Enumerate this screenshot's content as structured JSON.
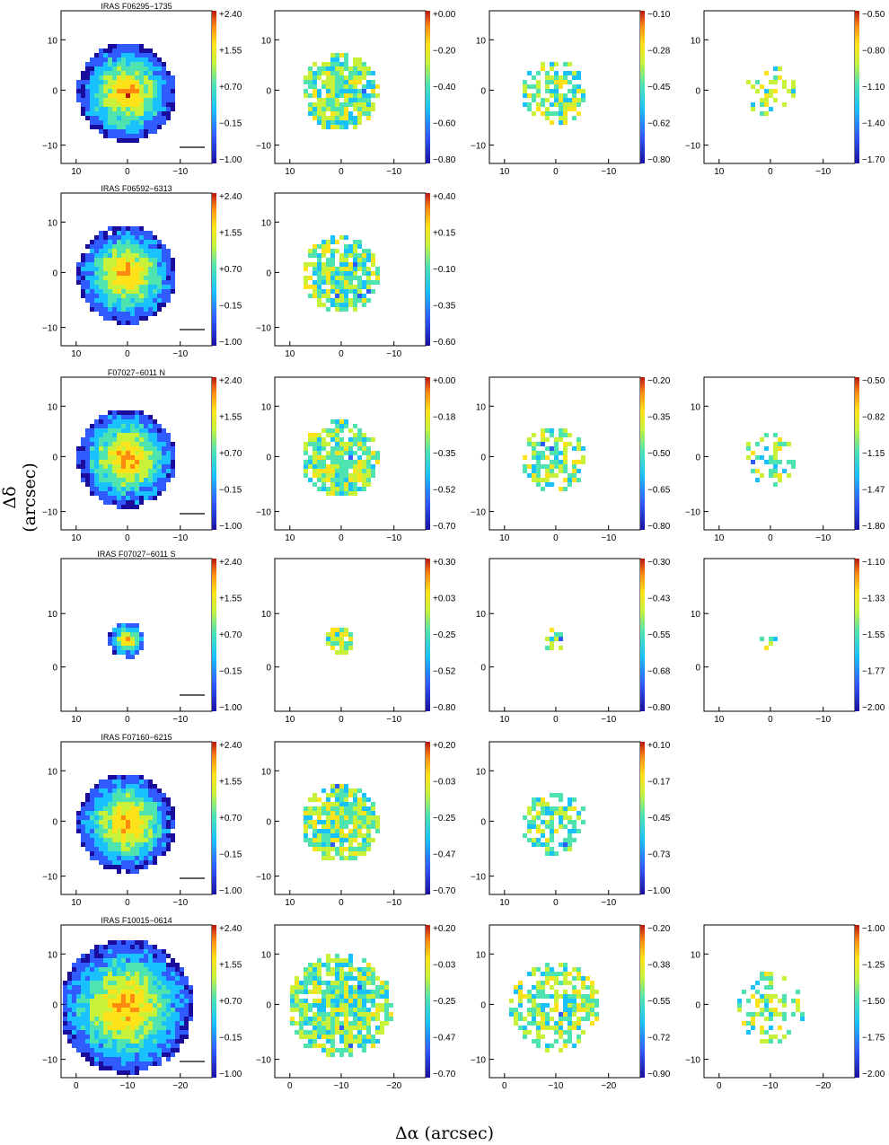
{
  "figure": {
    "xlabel": "Δα (arcsec)",
    "ylabel": "Δδ (arcsec)",
    "rows": [
      {
        "title": "IRAS F06295−1735",
        "xticks": [
          "10",
          "0",
          "−10"
        ],
        "yticks": [
          "10",
          "0",
          "−10"
        ],
        "panels": [
          {
            "cbar": [
              "+2.40",
              "+1.55",
              "+0.70",
              "−0.15",
              "−1.00"
            ]
          },
          {
            "cbar": [
              "+0.00",
              "−0.20",
              "−0.40",
              "−0.60",
              "−0.80"
            ]
          },
          {
            "cbar": [
              "−0.10",
              "−0.28",
              "−0.45",
              "−0.62",
              "−0.80"
            ]
          },
          {
            "cbar": [
              "−0.50",
              "−0.80",
              "−1.10",
              "−1.40",
              "−1.70"
            ]
          }
        ]
      },
      {
        "title": "IRAS F06592−6313",
        "xticks": [
          "10",
          "0",
          "−10"
        ],
        "yticks": [
          "10",
          "0",
          "−10"
        ],
        "panels": [
          {
            "cbar": [
              "+2.40",
              "+1.55",
              "+0.70",
              "−0.15",
              "−1.00"
            ]
          },
          {
            "cbar": [
              "+0.40",
              "+0.15",
              "−0.10",
              "−0.35",
              "−0.60"
            ]
          }
        ]
      },
      {
        "title": "F07027−6011 N",
        "xticks": [
          "10",
          "0",
          "−10"
        ],
        "yticks": [
          "10",
          "0",
          "−10"
        ],
        "panels": [
          {
            "cbar": [
              "+2.40",
              "+1.55",
              "+0.70",
              "−0.15",
              "−1.00"
            ]
          },
          {
            "cbar": [
              "+0.00",
              "−0.18",
              "−0.35",
              "−0.52",
              "−0.70"
            ]
          },
          {
            "cbar": [
              "−0.20",
              "−0.35",
              "−0.50",
              "−0.65",
              "−0.80"
            ]
          },
          {
            "cbar": [
              "−0.50",
              "−0.82",
              "−1.15",
              "−1.47",
              "−1.80"
            ]
          }
        ]
      },
      {
        "title": "IRAS F07027−6011 S",
        "xticks": [
          "10",
          "0",
          "−10"
        ],
        "yticks": [
          "10",
          "0"
        ],
        "panels": [
          {
            "cbar": [
              "+2.40",
              "+1.55",
              "+0.70",
              "−0.15",
              "−1.00"
            ]
          },
          {
            "cbar": [
              "+0.30",
              "+0.03",
              "−0.25",
              "−0.52",
              "−0.80"
            ]
          },
          {
            "cbar": [
              "−0.30",
              "−0.43",
              "−0.55",
              "−0.68",
              "−0.80"
            ]
          },
          {
            "cbar": [
              "−1.10",
              "−1.33",
              "−1.55",
              "−1.77",
              "−2.00"
            ]
          }
        ]
      },
      {
        "title": "IRAS F07160−6215",
        "xticks": [
          "10",
          "0",
          "−10"
        ],
        "yticks": [
          "10",
          "0",
          "−10"
        ],
        "panels": [
          {
            "cbar": [
              "+2.40",
              "+1.55",
              "+0.70",
              "−0.15",
              "−1.00"
            ]
          },
          {
            "cbar": [
              "+0.20",
              "−0.03",
              "−0.25",
              "−0.47",
              "−0.70"
            ]
          },
          {
            "cbar": [
              "+0.10",
              "−0.17",
              "−0.45",
              "−0.73",
              "−1.00"
            ]
          }
        ]
      },
      {
        "title": "IRAS F10015−0614",
        "xticks": [
          "0",
          "−10",
          "−20"
        ],
        "yticks": [
          "10",
          "0",
          "−10"
        ],
        "panels": [
          {
            "cbar": [
              "+2.40",
              "+1.55",
              "+0.70",
              "−0.15",
              "−1.00"
            ]
          },
          {
            "cbar": [
              "+0.20",
              "−0.03",
              "−0.25",
              "−0.47",
              "−0.70"
            ]
          },
          {
            "cbar": [
              "−0.20",
              "−0.38",
              "−0.55",
              "−0.72",
              "−0.90"
            ]
          },
          {
            "cbar": [
              "−1.00",
              "−1.25",
              "−1.50",
              "−1.75",
              "−2.00"
            ]
          }
        ]
      }
    ]
  }
}
